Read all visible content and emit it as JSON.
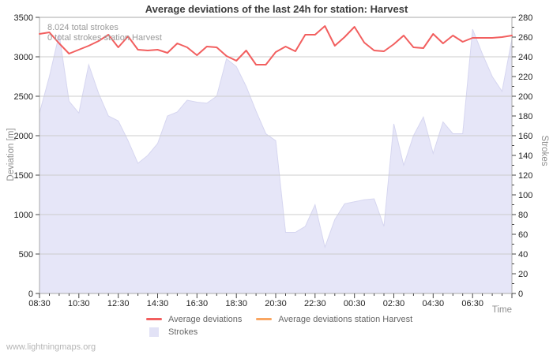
{
  "title": "Average deviations of the last 24h for station: Harvest",
  "annotations": {
    "line1": "8.024 total strokes",
    "line2": "0 total strokes station Harvest"
  },
  "axes": {
    "left_label": "Deviation [m]",
    "right_label": "Strokes",
    "x_label": "Time",
    "left_ticks": [
      0,
      500,
      1000,
      1500,
      2000,
      2500,
      3000,
      3500
    ],
    "right_ticks": [
      0,
      20,
      40,
      60,
      80,
      100,
      120,
      140,
      160,
      180,
      200,
      220,
      240,
      260,
      280
    ],
    "right_minor_step": 10,
    "x_tick_labels": [
      "08:30",
      "10:30",
      "12:30",
      "14:30",
      "16:30",
      "18:30",
      "20:30",
      "22:30",
      "00:30",
      "02:30",
      "04:30",
      "06:30"
    ]
  },
  "legend": {
    "items": [
      {
        "label": "Average deviations",
        "color": "#f25f5f",
        "type": "line"
      },
      {
        "label": "Average deviations station Harvest",
        "color": "#f9a662",
        "type": "line"
      },
      {
        "label": "Strokes",
        "color": "#e2e2f6",
        "type": "box"
      }
    ]
  },
  "footer": "www.lightningmaps.org",
  "colors": {
    "grid": "#cccccc",
    "plot_border": "#aaaaaa",
    "tick": "#444444",
    "area_fill": "#e6e6f8",
    "area_edge": "#d6d6f0"
  },
  "chart_data": {
    "type": "line+area",
    "x": [
      "08:30",
      "09:00",
      "09:30",
      "10:00",
      "10:30",
      "11:00",
      "11:30",
      "12:00",
      "12:30",
      "13:00",
      "13:30",
      "14:00",
      "14:30",
      "15:00",
      "15:30",
      "16:00",
      "16:30",
      "17:00",
      "17:30",
      "18:00",
      "18:30",
      "19:00",
      "19:30",
      "20:00",
      "20:30",
      "21:00",
      "21:30",
      "22:00",
      "22:30",
      "23:00",
      "23:30",
      "00:00",
      "00:30",
      "01:00",
      "01:30",
      "02:00",
      "02:30",
      "03:00",
      "03:30",
      "04:00",
      "04:30",
      "05:00",
      "05:30",
      "06:00",
      "06:30",
      "07:00",
      "07:30",
      "08:00",
      "08:30"
    ],
    "series": [
      {
        "name": "Average deviations",
        "type": "line",
        "axis": "left",
        "color": "#f25f5f",
        "values": [
          3290,
          3310,
          3170,
          3040,
          3090,
          3140,
          3200,
          3280,
          3120,
          3260,
          3090,
          3080,
          3090,
          3050,
          3170,
          3120,
          3020,
          3130,
          3120,
          3010,
          2950,
          3080,
          2900,
          2900,
          3060,
          3130,
          3070,
          3280,
          3280,
          3390,
          3140,
          3250,
          3380,
          3180,
          3080,
          3070,
          3160,
          3270,
          3120,
          3110,
          3290,
          3170,
          3270,
          3190,
          3240,
          3240,
          3240,
          3250,
          3270
        ]
      },
      {
        "name": "Average deviations station Harvest",
        "type": "line",
        "axis": "left",
        "color": "#f9a662",
        "values": []
      },
      {
        "name": "Strokes",
        "type": "area",
        "axis": "right",
        "color": "#e6e6f8",
        "values": [
          183,
          220,
          263,
          195,
          183,
          232,
          203,
          180,
          175,
          155,
          132,
          140,
          152,
          180,
          184,
          196,
          194,
          193,
          200,
          238,
          230,
          210,
          185,
          162,
          155,
          62,
          62,
          68,
          90,
          47,
          75,
          91,
          93,
          95,
          96,
          68,
          172,
          130,
          160,
          179,
          142,
          174,
          162,
          162,
          268,
          243,
          220,
          205,
          258
        ]
      }
    ],
    "left_axis": {
      "label": "Deviation [m]",
      "range": [
        0,
        3500
      ]
    },
    "right_axis": {
      "label": "Strokes",
      "range": [
        0,
        280
      ]
    },
    "x_axis": {
      "label": "Time",
      "major_every": 4
    },
    "title": "Average deviations of the last 24h for station: Harvest"
  }
}
